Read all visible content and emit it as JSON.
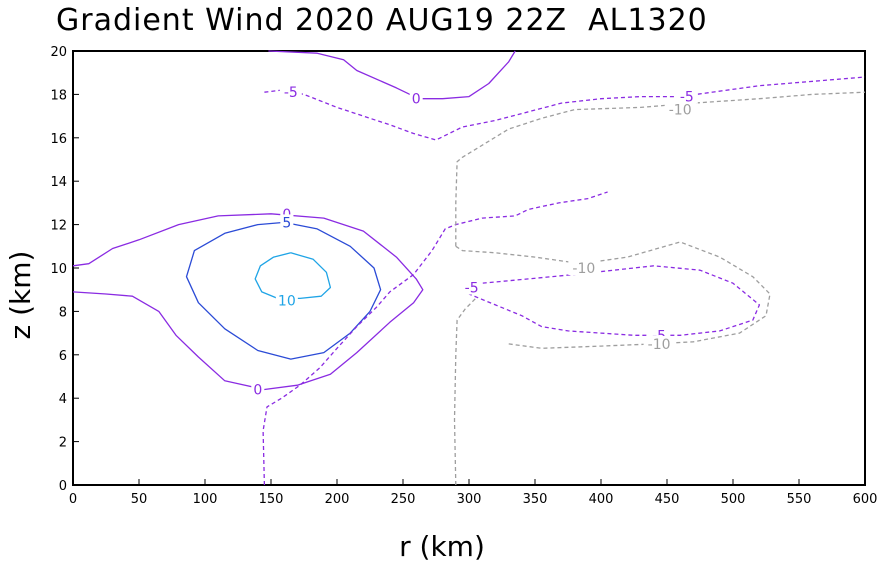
{
  "chart_data": {
    "type": "contour",
    "title": "Gradient Wind 2020 AUG19 22Z  AL1320",
    "xlabel": "r (km)",
    "ylabel": "z (km)",
    "xlim": [
      0,
      600
    ],
    "ylim": [
      0,
      20
    ],
    "xticks": [
      0,
      50,
      100,
      150,
      200,
      250,
      300,
      350,
      400,
      450,
      500,
      550,
      600
    ],
    "yticks": [
      0,
      2,
      4,
      6,
      8,
      10,
      12,
      14,
      16,
      18,
      20
    ],
    "grid": false,
    "contours": [
      {
        "level": "0",
        "color": "#8a2be2",
        "dash": false,
        "labels": [
          [
            260,
            17.8
          ],
          [
            162,
            12.5
          ],
          [
            140,
            4.4
          ]
        ],
        "lines": [
          [
            [
              0,
              10.1
            ],
            [
              12,
              10.2
            ],
            [
              30,
              10.9
            ],
            [
              50,
              11.3
            ],
            [
              80,
              12.0
            ],
            [
              110,
              12.4
            ],
            [
              150,
              12.5
            ],
            [
              190,
              12.3
            ],
            [
              220,
              11.7
            ],
            [
              245,
              10.5
            ],
            [
              260,
              9.5
            ],
            [
              265,
              9.0
            ],
            [
              258,
              8.4
            ],
            [
              240,
              7.5
            ],
            [
              215,
              6.1
            ],
            [
              195,
              5.1
            ],
            [
              170,
              4.6
            ],
            [
              145,
              4.4
            ],
            [
              115,
              4.8
            ],
            [
              95,
              5.9
            ],
            [
              78,
              6.9
            ],
            [
              65,
              8.0
            ],
            [
              45,
              8.7
            ],
            [
              25,
              8.8
            ],
            [
              0,
              8.9
            ]
          ],
          [
            [
              148,
              20
            ],
            [
              185,
              19.9
            ],
            [
              205,
              19.6
            ],
            [
              215,
              19.1
            ],
            [
              245,
              18.3
            ],
            [
              262,
              17.8
            ],
            [
              280,
              17.8
            ],
            [
              300,
              17.9
            ],
            [
              315,
              18.5
            ],
            [
              330,
              19.5
            ],
            [
              335,
              20
            ]
          ]
        ]
      },
      {
        "level": "5",
        "color": "#2b4bd6",
        "dash": false,
        "labels": [
          [
            162,
            12.1
          ]
        ],
        "lines": [
          [
            [
              160,
              12.1
            ],
            [
              185,
              11.8
            ],
            [
              210,
              11.0
            ],
            [
              228,
              10.0
            ],
            [
              233,
              9.0
            ],
            [
              225,
              8.0
            ],
            [
              210,
              7.0
            ],
            [
              190,
              6.1
            ],
            [
              165,
              5.8
            ],
            [
              140,
              6.2
            ],
            [
              115,
              7.2
            ],
            [
              95,
              8.4
            ],
            [
              86,
              9.6
            ],
            [
              92,
              10.8
            ],
            [
              115,
              11.6
            ],
            [
              140,
              12.0
            ],
            [
              160,
              12.1
            ]
          ]
        ]
      },
      {
        "level": "10",
        "color": "#1fa4e6",
        "dash": false,
        "labels": [
          [
            162,
            8.5
          ]
        ],
        "lines": [
          [
            [
              165,
              10.7
            ],
            [
              182,
              10.4
            ],
            [
              192,
              9.8
            ],
            [
              195,
              9.1
            ],
            [
              188,
              8.7
            ],
            [
              172,
              8.6
            ],
            [
              155,
              8.6
            ],
            [
              143,
              8.9
            ],
            [
              138,
              9.5
            ],
            [
              142,
              10.1
            ],
            [
              152,
              10.5
            ],
            [
              165,
              10.7
            ]
          ]
        ]
      },
      {
        "level": "-5",
        "color": "#8a2be2",
        "dash": true,
        "labels": [
          [
            165,
            18.1
          ],
          [
            465,
            17.9
          ],
          [
            302,
            9.1
          ],
          [
            444,
            6.9
          ]
        ],
        "lines": [
          [
            [
              145,
              0
            ],
            [
              144,
              2.5
            ],
            [
              147,
              3.6
            ],
            [
              158,
              4.0
            ],
            [
              172,
              4.6
            ],
            [
              187,
              5.4
            ],
            [
              200,
              6.3
            ],
            [
              215,
              7.3
            ],
            [
              230,
              8.2
            ],
            [
              240,
              8.9
            ],
            [
              258,
              9.7
            ],
            [
              272,
              10.8
            ],
            [
              282,
              11.8
            ],
            [
              290,
              12.0
            ],
            [
              310,
              12.3
            ],
            [
              335,
              12.4
            ],
            [
              345,
              12.7
            ],
            [
              368,
              13.0
            ],
            [
              390,
              13.2
            ],
            [
              405,
              13.5
            ]
          ],
          [
            [
              145,
              18.1
            ],
            [
              158,
              18.2
            ],
            [
              175,
              18.0
            ],
            [
              200,
              17.4
            ],
            [
              215,
              17.1
            ],
            [
              225,
              16.9
            ],
            [
              240,
              16.6
            ],
            [
              258,
              16.2
            ],
            [
              275,
              15.9
            ],
            [
              295,
              16.5
            ],
            [
              320,
              16.8
            ],
            [
              345,
              17.2
            ],
            [
              370,
              17.6
            ],
            [
              400,
              17.8
            ],
            [
              430,
              17.9
            ],
            [
              460,
              17.9
            ],
            [
              520,
              18.4
            ],
            [
              580,
              18.7
            ],
            [
              600,
              18.8
            ]
          ],
          [
            [
              296,
              8.9
            ],
            [
              302,
              9.1
            ],
            [
              310,
              9.3
            ],
            [
              345,
              9.5
            ],
            [
              380,
              9.7
            ],
            [
              440,
              10.1
            ],
            [
              475,
              9.9
            ],
            [
              500,
              9.3
            ],
            [
              520,
              8.3
            ],
            [
              515,
              7.6
            ],
            [
              490,
              7.1
            ],
            [
              460,
              6.9
            ],
            [
              425,
              6.9
            ],
            [
              400,
              7.0
            ],
            [
              375,
              7.1
            ],
            [
              355,
              7.3
            ],
            [
              340,
              7.8
            ],
            [
              320,
              8.3
            ],
            [
              300,
              8.8
            ]
          ]
        ]
      },
      {
        "level": "-10",
        "color": "#9e9e9e",
        "dash": true,
        "labels": [
          [
            460,
            17.3
          ],
          [
            387,
            10.0
          ],
          [
            444,
            6.5
          ]
        ],
        "lines": [
          [
            [
              290,
              0
            ],
            [
              289,
              3.0
            ],
            [
              290,
              6.0
            ],
            [
              291,
              7.6
            ],
            [
              297,
              8.1
            ],
            [
              305,
              8.6
            ]
          ],
          [
            [
              290,
              11.0
            ],
            [
              295,
              10.8
            ],
            [
              320,
              10.7
            ],
            [
              350,
              10.5
            ],
            [
              385,
              10.2
            ],
            [
              420,
              10.5
            ],
            [
              460,
              11.2
            ],
            [
              490,
              10.5
            ],
            [
              515,
              9.6
            ],
            [
              528,
              8.8
            ],
            [
              525,
              7.8
            ],
            [
              505,
              7.0
            ],
            [
              470,
              6.6
            ],
            [
              440,
              6.5
            ],
            [
              400,
              6.4
            ],
            [
              355,
              6.3
            ],
            [
              330,
              6.5
            ]
          ],
          [
            [
              290,
              11.0
            ],
            [
              290,
              13.0
            ],
            [
              291,
              14.9
            ],
            [
              295,
              15.1
            ],
            [
              330,
              16.4
            ],
            [
              355,
              16.9
            ],
            [
              380,
              17.3
            ],
            [
              430,
              17.4
            ],
            [
              470,
              17.6
            ],
            [
              520,
              17.8
            ],
            [
              560,
              18.0
            ],
            [
              600,
              18.1
            ]
          ]
        ]
      }
    ]
  }
}
